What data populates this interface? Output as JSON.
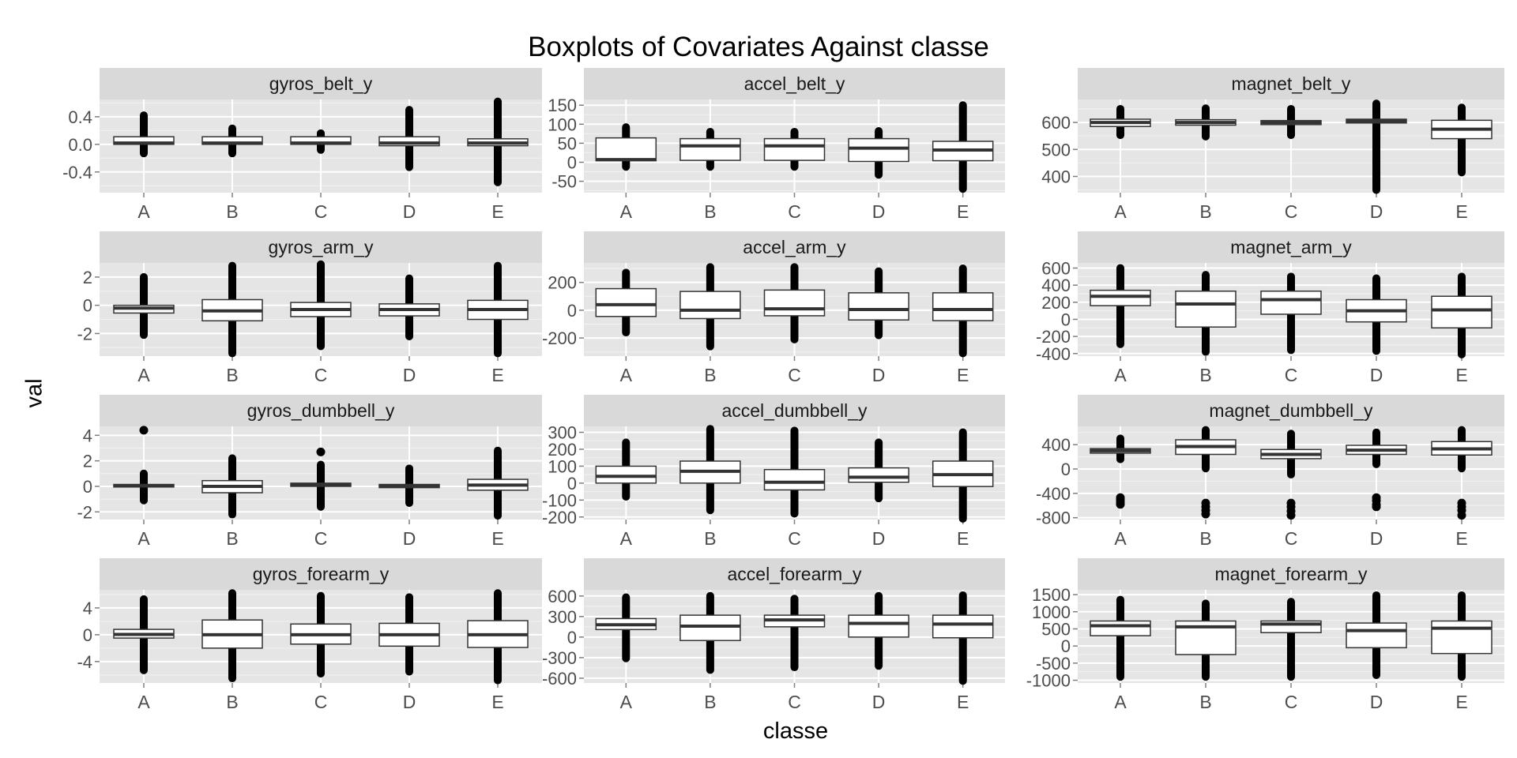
{
  "title": "Boxplots of Covariates Against classe",
  "chart_data": {
    "type": "boxplot",
    "title": "Boxplots of Covariates Against classe",
    "xlabel": "classe",
    "ylabel": "val",
    "categories": [
      "A",
      "B",
      "C",
      "D",
      "E"
    ],
    "facet_layout": "4 rows x 3 columns, independent y scales",
    "panels": [
      {
        "name": "gyros_belt_y",
        "ylim": [
          -0.7,
          0.65
        ],
        "yticks": [
          -0.4,
          0.0,
          0.4
        ],
        "yticklabels": [
          "-0.4",
          "0.0",
          "0.4"
        ],
        "boxes": [
          {
            "category": "A",
            "whisker_low": -0.13,
            "q1": 0.0,
            "median": 0.02,
            "q3": 0.11,
            "whisker_high": 0.42
          },
          {
            "category": "B",
            "whisker_low": -0.13,
            "q1": 0.0,
            "median": 0.02,
            "q3": 0.11,
            "whisker_high": 0.23
          },
          {
            "category": "C",
            "whisker_low": -0.08,
            "q1": 0.0,
            "median": 0.02,
            "q3": 0.11,
            "whisker_high": 0.16
          },
          {
            "category": "D",
            "whisker_low": -0.33,
            "q1": -0.02,
            "median": 0.02,
            "q3": 0.11,
            "whisker_high": 0.5
          },
          {
            "category": "E",
            "whisker_low": -0.55,
            "q1": -0.02,
            "median": 0.02,
            "q3": 0.08,
            "whisker_high": 0.62
          }
        ]
      },
      {
        "name": "accel_belt_y",
        "ylim": [
          -80,
          165
        ],
        "yticks": [
          -50,
          0,
          50,
          100,
          150
        ],
        "yticklabels": [
          "-50",
          "0",
          "50",
          "100",
          "150"
        ],
        "boxes": [
          {
            "category": "A",
            "whisker_low": -12,
            "q1": 4,
            "median": 7,
            "q3": 64,
            "whisker_high": 92
          },
          {
            "category": "B",
            "whisker_low": -12,
            "q1": 5,
            "median": 43,
            "q3": 62,
            "whisker_high": 80
          },
          {
            "category": "C",
            "whisker_low": -12,
            "q1": 5,
            "median": 43,
            "q3": 62,
            "whisker_high": 80
          },
          {
            "category": "D",
            "whisker_low": -33,
            "q1": 2,
            "median": 37,
            "q3": 62,
            "whisker_high": 82
          },
          {
            "category": "E",
            "whisker_low": -70,
            "q1": 4,
            "median": 32,
            "q3": 55,
            "whisker_high": 150
          }
        ]
      },
      {
        "name": "magnet_belt_y",
        "ylim": [
          340,
          685
        ],
        "yticks": [
          400,
          500,
          600
        ],
        "yticklabels": [
          "400",
          "500",
          "600"
        ],
        "boxes": [
          {
            "category": "A",
            "whisker_low": 553,
            "q1": 585,
            "median": 600,
            "q3": 612,
            "whisker_high": 650
          },
          {
            "category": "B",
            "whisker_low": 548,
            "q1": 590,
            "median": 600,
            "q3": 610,
            "whisker_high": 652
          },
          {
            "category": "C",
            "whisker_low": 553,
            "q1": 592,
            "median": 600,
            "q3": 607,
            "whisker_high": 650
          },
          {
            "category": "D",
            "whisker_low": 350,
            "q1": 598,
            "median": 606,
            "q3": 612,
            "whisker_high": 670
          },
          {
            "category": "E",
            "whisker_low": 415,
            "q1": 540,
            "median": 575,
            "q3": 608,
            "whisker_high": 655
          }
        ]
      },
      {
        "name": "gyros_arm_y",
        "ylim": [
          -3.6,
          3.0
        ],
        "yticks": [
          -2,
          0,
          2
        ],
        "yticklabels": [
          "-2",
          "0",
          "2"
        ],
        "boxes": [
          {
            "category": "A",
            "whisker_low": -2.1,
            "q1": -0.55,
            "median": -0.2,
            "q3": 0.0,
            "whisker_high": 2.0
          },
          {
            "category": "B",
            "whisker_low": -3.4,
            "q1": -1.1,
            "median": -0.4,
            "q3": 0.4,
            "whisker_high": 2.8
          },
          {
            "category": "C",
            "whisker_low": -2.9,
            "q1": -0.8,
            "median": -0.3,
            "q3": 0.2,
            "whisker_high": 2.9
          },
          {
            "category": "D",
            "whisker_low": -2.2,
            "q1": -0.75,
            "median": -0.3,
            "q3": 0.1,
            "whisker_high": 1.9
          },
          {
            "category": "E",
            "whisker_low": -3.4,
            "q1": -1.0,
            "median": -0.3,
            "q3": 0.35,
            "whisker_high": 2.8
          }
        ]
      },
      {
        "name": "accel_arm_y",
        "ylim": [
          -330,
          340
        ],
        "yticks": [
          -200,
          0,
          200
        ],
        "yticklabels": [
          "-200",
          "0",
          "200"
        ],
        "boxes": [
          {
            "category": "A",
            "whisker_low": -160,
            "q1": -45,
            "median": 40,
            "q3": 155,
            "whisker_high": 270
          },
          {
            "category": "B",
            "whisker_low": -260,
            "q1": -60,
            "median": 0,
            "q3": 135,
            "whisker_high": 310
          },
          {
            "category": "C",
            "whisker_low": -210,
            "q1": -40,
            "median": 10,
            "q3": 145,
            "whisker_high": 310
          },
          {
            "category": "D",
            "whisker_low": -180,
            "q1": -70,
            "median": 5,
            "q3": 125,
            "whisker_high": 280
          },
          {
            "category": "E",
            "whisker_low": -310,
            "q1": -75,
            "median": 5,
            "q3": 125,
            "whisker_high": 300
          }
        ]
      },
      {
        "name": "magnet_arm_y",
        "ylim": [
          -430,
          660
        ],
        "yticks": [
          -400,
          -200,
          0,
          200,
          400,
          600
        ],
        "yticklabels": [
          "-400",
          "-200",
          "0",
          "200",
          "400",
          "600"
        ],
        "boxes": [
          {
            "category": "A",
            "whisker_low": -290,
            "q1": 160,
            "median": 270,
            "q3": 340,
            "whisker_high": 600
          },
          {
            "category": "B",
            "whisker_low": -380,
            "q1": -90,
            "median": 180,
            "q3": 330,
            "whisker_high": 520
          },
          {
            "category": "C",
            "whisker_low": -360,
            "q1": 60,
            "median": 230,
            "q3": 330,
            "whisker_high": 500
          },
          {
            "category": "D",
            "whisker_low": -370,
            "q1": -30,
            "median": 100,
            "q3": 230,
            "whisker_high": 480
          },
          {
            "category": "E",
            "whisker_low": -410,
            "q1": -100,
            "median": 110,
            "q3": 270,
            "whisker_high": 500
          }
        ]
      },
      {
        "name": "gyros_dumbbell_y",
        "ylim": [
          -2.6,
          4.7
        ],
        "yticks": [
          -2,
          0,
          2,
          4
        ],
        "yticklabels": [
          "-2",
          "0",
          "2",
          "4"
        ],
        "boxes": [
          {
            "category": "A",
            "whisker_low": -1.1,
            "q1": -0.05,
            "median": 0.05,
            "q3": 0.15,
            "whisker_high": 1.0,
            "outliers": [
              4.4
            ]
          },
          {
            "category": "B",
            "whisker_low": -2.2,
            "q1": -0.5,
            "median": 0.0,
            "q3": 0.45,
            "whisker_high": 2.2
          },
          {
            "category": "C",
            "whisker_low": -1.6,
            "q1": 0.0,
            "median": 0.1,
            "q3": 0.25,
            "whisker_high": 1.7,
            "outliers": [
              2.7
            ]
          },
          {
            "category": "D",
            "whisker_low": -1.3,
            "q1": -0.1,
            "median": 0.0,
            "q3": 0.15,
            "whisker_high": 1.4
          },
          {
            "category": "E",
            "whisker_low": -2.3,
            "q1": -0.3,
            "median": 0.1,
            "q3": 0.55,
            "whisker_high": 2.8
          }
        ]
      },
      {
        "name": "accel_dumbbell_y",
        "ylim": [
          -215,
          335
        ],
        "yticks": [
          -200,
          -100,
          0,
          100,
          200,
          300
        ],
        "yticklabels": [
          "-200",
          "-100",
          "0",
          "100",
          "200",
          "300"
        ],
        "boxes": [
          {
            "category": "A",
            "whisker_low": -80,
            "q1": 0,
            "median": 40,
            "q3": 100,
            "whisker_high": 240
          },
          {
            "category": "B",
            "whisker_low": -160,
            "q1": 0,
            "median": 70,
            "q3": 130,
            "whisker_high": 320
          },
          {
            "category": "C",
            "whisker_low": -180,
            "q1": -40,
            "median": 5,
            "q3": 80,
            "whisker_high": 310
          },
          {
            "category": "D",
            "whisker_low": -90,
            "q1": 5,
            "median": 35,
            "q3": 90,
            "whisker_high": 240
          },
          {
            "category": "E",
            "whisker_low": -210,
            "q1": -20,
            "median": 50,
            "q3": 130,
            "whisker_high": 300
          }
        ]
      },
      {
        "name": "magnet_dumbbell_y",
        "ylim": [
          -830,
          700
        ],
        "yticks": [
          -800,
          -400,
          0,
          400
        ],
        "yticklabels": [
          "-800",
          "-400",
          "0",
          "400"
        ],
        "boxes": [
          {
            "category": "A",
            "whisker_low": 160,
            "q1": 260,
            "median": 300,
            "q3": 335,
            "whisker_high": 500,
            "outliers": [
              -470,
              -510,
              -550,
              -580
            ]
          },
          {
            "category": "B",
            "whisker_low": 10,
            "q1": 240,
            "median": 370,
            "q3": 480,
            "whisker_high": 640,
            "outliers": [
              -560,
              -620,
              -680,
              -740
            ]
          },
          {
            "category": "C",
            "whisker_low": -90,
            "q1": 170,
            "median": 240,
            "q3": 320,
            "whisker_high": 580,
            "outliers": [
              -560,
              -620,
              -690,
              -760
            ]
          },
          {
            "category": "D",
            "whisker_low": 80,
            "q1": 240,
            "median": 310,
            "q3": 390,
            "whisker_high": 600,
            "outliers": [
              -470,
              -520,
              -580,
              -620
            ]
          },
          {
            "category": "E",
            "whisker_low": 10,
            "q1": 230,
            "median": 330,
            "q3": 450,
            "whisker_high": 640,
            "outliers": [
              -560,
              -620,
              -680,
              -760
            ]
          }
        ]
      },
      {
        "name": "gyros_forearm_y",
        "ylim": [
          -7.2,
          6.7
        ],
        "yticks": [
          -4,
          0,
          4
        ],
        "yticklabels": [
          "-4",
          "0",
          "4"
        ],
        "boxes": [
          {
            "category": "A",
            "whisker_low": -5.3,
            "q1": -0.5,
            "median": 0.05,
            "q3": 0.8,
            "whisker_high": 5.3
          },
          {
            "category": "B",
            "whisker_low": -6.5,
            "q1": -2.0,
            "median": 0.0,
            "q3": 2.2,
            "whisker_high": 6.2
          },
          {
            "category": "C",
            "whisker_low": -5.8,
            "q1": -1.4,
            "median": 0.0,
            "q3": 1.6,
            "whisker_high": 5.8
          },
          {
            "category": "D",
            "whisker_low": -5.5,
            "q1": -1.7,
            "median": 0.0,
            "q3": 1.7,
            "whisker_high": 5.6
          },
          {
            "category": "E",
            "whisker_low": -6.8,
            "q1": -1.9,
            "median": 0.0,
            "q3": 2.1,
            "whisker_high": 6.2
          }
        ]
      },
      {
        "name": "accel_forearm_y",
        "ylim": [
          -670,
          690
        ],
        "yticks": [
          -600,
          -300,
          0,
          300,
          600
        ],
        "yticklabels": [
          "-600",
          "-300",
          "0",
          "300",
          "600"
        ],
        "boxes": [
          {
            "category": "A",
            "whisker_low": -310,
            "q1": 110,
            "median": 180,
            "q3": 270,
            "whisker_high": 580
          },
          {
            "category": "B",
            "whisker_low": -480,
            "q1": -50,
            "median": 160,
            "q3": 320,
            "whisker_high": 600
          },
          {
            "category": "C",
            "whisker_low": -440,
            "q1": 150,
            "median": 250,
            "q3": 320,
            "whisker_high": 560
          },
          {
            "category": "D",
            "whisker_low": -420,
            "q1": 0,
            "median": 200,
            "q3": 320,
            "whisker_high": 600
          },
          {
            "category": "E",
            "whisker_low": -640,
            "q1": -10,
            "median": 190,
            "q3": 320,
            "whisker_high": 610
          }
        ]
      },
      {
        "name": "magnet_forearm_y",
        "ylim": [
          -1080,
          1640
        ],
        "yticks": [
          -1000,
          -500,
          0,
          500,
          1000,
          1500
        ],
        "yticklabels": [
          "-1000",
          "-500",
          "0",
          "500",
          "1000",
          "1500"
        ],
        "boxes": [
          {
            "category": "A",
            "whisker_low": -900,
            "q1": 300,
            "median": 590,
            "q3": 730,
            "whisker_high": 1350
          },
          {
            "category": "B",
            "whisker_low": -900,
            "q1": -250,
            "median": 560,
            "q3": 730,
            "whisker_high": 1240
          },
          {
            "category": "C",
            "whisker_low": -900,
            "q1": 390,
            "median": 640,
            "q3": 730,
            "whisker_high": 1290
          },
          {
            "category": "D",
            "whisker_low": -850,
            "q1": -50,
            "median": 450,
            "q3": 670,
            "whisker_high": 1480
          },
          {
            "category": "E",
            "whisker_low": -900,
            "q1": -220,
            "median": 520,
            "q3": 730,
            "whisker_high": 1480
          }
        ]
      }
    ]
  }
}
